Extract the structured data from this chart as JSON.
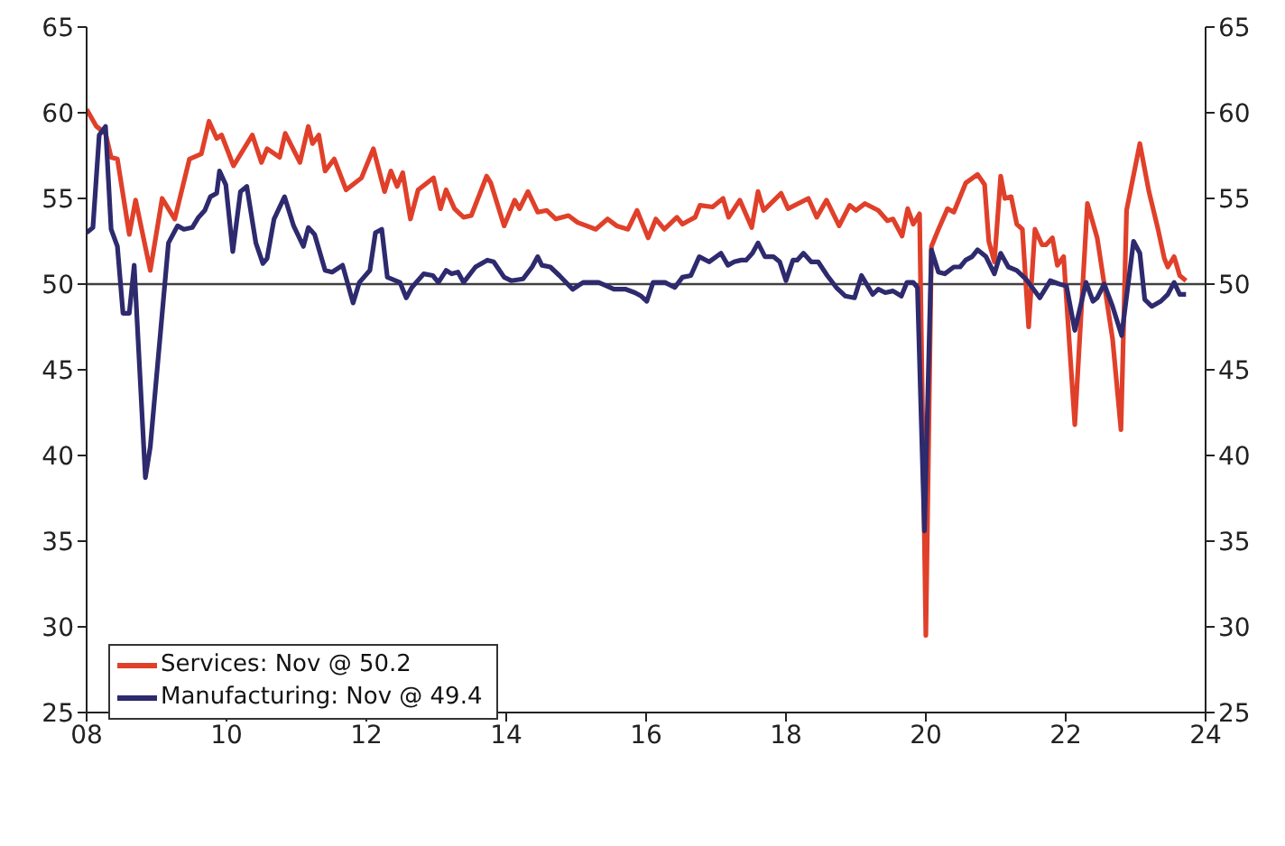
{
  "chart_data": {
    "type": "line",
    "xlim": [
      2008,
      2024
    ],
    "xticks": [
      {
        "value": 2008,
        "label": "08"
      },
      {
        "value": 2010,
        "label": "10"
      },
      {
        "value": 2012,
        "label": "12"
      },
      {
        "value": 2014,
        "label": "14"
      },
      {
        "value": 2016,
        "label": "16"
      },
      {
        "value": 2018,
        "label": "18"
      },
      {
        "value": 2020,
        "label": "20"
      },
      {
        "value": 2022,
        "label": "22"
      },
      {
        "value": 2024,
        "label": "24"
      }
    ],
    "ylim": [
      25,
      65
    ],
    "yticks": [
      25,
      30,
      35,
      40,
      45,
      50,
      55,
      60,
      65
    ],
    "y2lim": [
      25,
      65
    ],
    "y2ticks": [
      25,
      30,
      35,
      40,
      45,
      50,
      55,
      60,
      65
    ],
    "grid": false,
    "legend": "bottom left",
    "marker": "none",
    "line_style": "solid",
    "ref_lines": [
      {
        "axis": "y",
        "value": 50,
        "color": "#404040"
      }
    ],
    "series": [
      {
        "name": "Services: Nov @ 50.2",
        "color": "#e0402a",
        "x": [
          2008.0,
          2008.14,
          2008.27,
          2008.35,
          2008.44,
          2008.61,
          2008.7,
          2008.91,
          2009.08,
          2009.26,
          2009.47,
          2009.64,
          2009.75,
          2009.86,
          2009.93,
          2010.1,
          2010.37,
          2010.5,
          2010.58,
          2010.76,
          2010.84,
          2011.05,
          2011.17,
          2011.23,
          2011.32,
          2011.41,
          2011.54,
          2011.71,
          2011.93,
          2012.1,
          2012.26,
          2012.35,
          2012.44,
          2012.52,
          2012.63,
          2012.74,
          2012.96,
          2013.06,
          2013.14,
          2013.26,
          2013.39,
          2013.5,
          2013.72,
          2013.78,
          2013.97,
          2014.12,
          2014.19,
          2014.31,
          2014.45,
          2014.58,
          2014.71,
          2014.89,
          2015.02,
          2015.28,
          2015.45,
          2015.58,
          2015.74,
          2015.87,
          2016.03,
          2016.14,
          2016.26,
          2016.44,
          2016.52,
          2016.7,
          2016.77,
          2016.95,
          2017.1,
          2017.18,
          2017.34,
          2017.51,
          2017.6,
          2017.68,
          2017.93,
          2018.03,
          2018.32,
          2018.44,
          2018.58,
          2018.76,
          2018.91,
          2019.0,
          2019.13,
          2019.32,
          2019.45,
          2019.53,
          2019.66,
          2019.74,
          2019.82,
          2019.91,
          2020.0,
          2020.08,
          2020.18,
          2020.31,
          2020.4,
          2020.57,
          2020.74,
          2020.84,
          2020.9,
          2020.98,
          2021.07,
          2021.13,
          2021.22,
          2021.3,
          2021.38,
          2021.47,
          2021.56,
          2021.66,
          2021.72,
          2021.81,
          2021.88,
          2021.97,
          2022.13,
          2022.31,
          2022.45,
          2022.67,
          2022.79,
          2022.87,
          2023.06,
          2023.19,
          2023.32,
          2023.41,
          2023.46,
          2023.55,
          2023.63,
          2023.72
        ],
        "values": [
          60.2,
          59.2,
          58.8,
          57.4,
          57.3,
          52.9,
          54.9,
          50.8,
          55.0,
          53.8,
          57.3,
          57.6,
          59.5,
          58.5,
          58.7,
          56.9,
          58.7,
          57.1,
          57.9,
          57.4,
          58.8,
          57.1,
          59.2,
          58.2,
          58.7,
          56.6,
          57.3,
          55.5,
          56.2,
          57.9,
          55.4,
          56.6,
          55.7,
          56.5,
          53.8,
          55.5,
          56.2,
          54.4,
          55.5,
          54.4,
          53.9,
          54.0,
          56.3,
          55.9,
          53.4,
          54.9,
          54.4,
          55.4,
          54.2,
          54.3,
          53.8,
          54.0,
          53.6,
          53.2,
          53.8,
          53.4,
          53.2,
          54.3,
          52.7,
          53.8,
          53.2,
          53.9,
          53.5,
          53.9,
          54.6,
          54.5,
          55.0,
          53.9,
          54.9,
          53.3,
          55.4,
          54.3,
          55.3,
          54.4,
          55.0,
          53.9,
          54.9,
          53.4,
          54.6,
          54.3,
          54.7,
          54.3,
          53.7,
          53.8,
          52.8,
          54.4,
          53.5,
          54.1,
          29.5,
          52.2,
          53.2,
          54.4,
          54.2,
          55.9,
          56.4,
          55.8,
          52.5,
          51.3,
          56.3,
          55.0,
          55.1,
          53.5,
          53.2,
          47.5,
          53.2,
          52.3,
          52.3,
          52.7,
          51.1,
          51.6,
          41.8,
          54.7,
          52.7,
          46.8,
          41.5,
          54.3,
          58.2,
          55.4,
          53.2,
          51.5,
          51.0,
          51.6,
          50.5,
          50.2
        ]
      },
      {
        "name": "Manufacturing: Nov @ 49.4",
        "color": "#2e2a6e",
        "x": [
          2008.0,
          2008.09,
          2008.18,
          2008.27,
          2008.35,
          2008.44,
          2008.52,
          2008.61,
          2008.68,
          2008.84,
          2008.91,
          2009.17,
          2009.3,
          2009.39,
          2009.51,
          2009.6,
          2009.69,
          2009.77,
          2009.86,
          2009.9,
          2009.99,
          2010.09,
          2010.2,
          2010.29,
          2010.42,
          2010.52,
          2010.58,
          2010.68,
          2010.83,
          2010.96,
          2011.1,
          2011.17,
          2011.26,
          2011.41,
          2011.51,
          2011.66,
          2011.81,
          2011.9,
          2012.05,
          2012.13,
          2012.22,
          2012.3,
          2012.48,
          2012.57,
          2012.65,
          2012.82,
          2012.95,
          2013.03,
          2013.14,
          2013.22,
          2013.31,
          2013.39,
          2013.56,
          2013.73,
          2013.82,
          2013.97,
          2014.07,
          2014.24,
          2014.37,
          2014.45,
          2014.51,
          2014.63,
          2014.76,
          2014.95,
          2015.1,
          2015.32,
          2015.54,
          2015.71,
          2015.84,
          2015.93,
          2016.01,
          2016.1,
          2016.27,
          2016.41,
          2016.52,
          2016.64,
          2016.76,
          2016.9,
          2017.07,
          2017.17,
          2017.26,
          2017.36,
          2017.43,
          2017.52,
          2017.6,
          2017.7,
          2017.82,
          2017.91,
          2018.0,
          2018.1,
          2018.16,
          2018.25,
          2018.36,
          2018.46,
          2018.59,
          2018.72,
          2018.85,
          2018.98,
          2019.08,
          2019.24,
          2019.32,
          2019.42,
          2019.53,
          2019.65,
          2019.73,
          2019.82,
          2019.88,
          2019.98,
          2020.08,
          2020.18,
          2020.27,
          2020.4,
          2020.49,
          2020.57,
          2020.66,
          2020.74,
          2020.86,
          2020.98,
          2021.07,
          2021.18,
          2021.3,
          2021.43,
          2021.54,
          2021.63,
          2021.78,
          2021.91,
          2022.01,
          2022.13,
          2022.29,
          2022.39,
          2022.45,
          2022.55,
          2022.67,
          2022.8,
          2022.97,
          2023.06,
          2023.13,
          2023.23,
          2023.36,
          2023.46,
          2023.55,
          2023.63,
          2023.72
        ],
        "values": [
          53.0,
          53.3,
          58.7,
          59.2,
          53.2,
          52.2,
          48.3,
          48.3,
          51.1,
          38.7,
          40.5,
          52.4,
          53.4,
          53.2,
          53.3,
          53.9,
          54.3,
          55.1,
          55.3,
          56.6,
          55.8,
          51.9,
          55.4,
          55.7,
          52.4,
          51.2,
          51.5,
          53.8,
          55.1,
          53.4,
          52.2,
          53.3,
          52.9,
          50.8,
          50.7,
          51.1,
          48.9,
          50.1,
          50.8,
          53.0,
          53.2,
          50.4,
          50.1,
          49.2,
          49.8,
          50.6,
          50.5,
          50.1,
          50.8,
          50.6,
          50.7,
          50.1,
          51.0,
          51.4,
          51.3,
          50.4,
          50.2,
          50.3,
          51.0,
          51.6,
          51.1,
          51.0,
          50.5,
          49.7,
          50.1,
          50.1,
          49.7,
          49.7,
          49.5,
          49.3,
          49.0,
          50.1,
          50.1,
          49.8,
          50.4,
          50.5,
          51.6,
          51.3,
          51.8,
          51.1,
          51.3,
          51.4,
          51.4,
          51.8,
          52.4,
          51.6,
          51.6,
          51.3,
          50.2,
          51.4,
          51.4,
          51.8,
          51.3,
          51.3,
          50.5,
          49.8,
          49.3,
          49.2,
          50.5,
          49.4,
          49.7,
          49.5,
          49.6,
          49.3,
          50.1,
          50.1,
          49.8,
          35.6,
          52.0,
          50.7,
          50.6,
          51.0,
          51.0,
          51.4,
          51.6,
          52.0,
          51.6,
          50.6,
          51.8,
          51.0,
          50.8,
          50.3,
          49.7,
          49.2,
          50.2,
          50.0,
          49.9,
          47.3,
          50.1,
          49.0,
          49.2,
          50.0,
          48.7,
          47.0,
          52.5,
          51.8,
          49.1,
          48.7,
          49.0,
          49.4,
          50.1,
          49.4,
          49.4
        ]
      }
    ]
  }
}
